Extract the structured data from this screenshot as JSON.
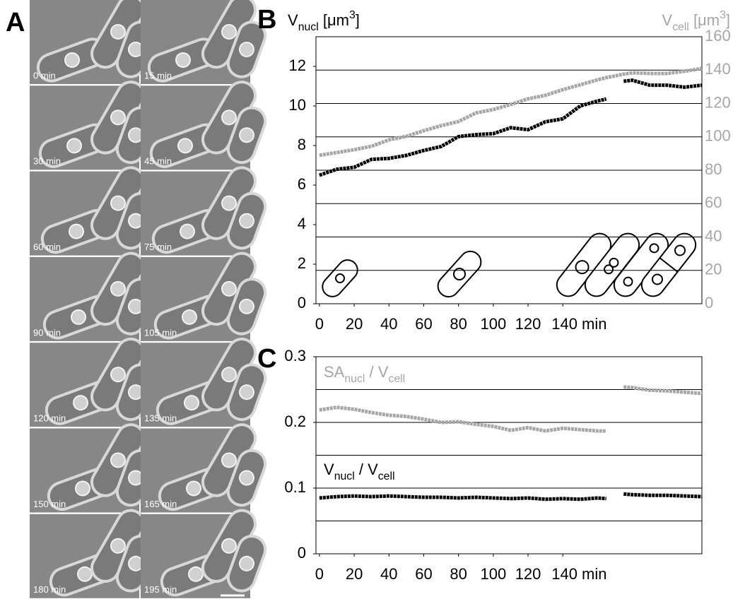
{
  "panel_a": {
    "label": "A",
    "frames": [
      "0 min",
      "15 min",
      "30 min",
      "45 min",
      "60 min",
      "75 min",
      "90 min",
      "105 min",
      "120 min",
      "135 min",
      "150 min",
      "165 min",
      "180 min",
      "195 min"
    ]
  },
  "chart_data": [
    {
      "type": "line",
      "label": "B",
      "ylabel": [
        {
          "text": "V"
        },
        {
          "text": "nucl",
          "sub": true
        },
        {
          "text": " [μm"
        },
        {
          "text": "3",
          "sup": true
        },
        {
          "text": "]"
        }
      ],
      "y2label": [
        {
          "text": "V"
        },
        {
          "text": "cell",
          "sub": true
        },
        {
          "text": " [μm"
        },
        {
          "text": "3",
          "sup": true
        },
        {
          "text": "]"
        }
      ],
      "x": [
        0,
        10,
        20,
        30,
        40,
        50,
        60,
        70,
        80,
        90,
        100,
        110,
        120,
        130,
        140,
        150,
        160,
        165,
        170,
        175,
        180,
        190,
        200,
        210,
        220
      ],
      "xlim": [
        -2,
        220
      ],
      "xticks": [
        0,
        20,
        40,
        60,
        80,
        100,
        120,
        {
          "value": 140,
          "label": "140 min"
        }
      ],
      "ylim": [
        0,
        13.5
      ],
      "yticks": [
        0,
        2,
        4,
        6,
        8,
        10,
        12
      ],
      "y2lim": [
        0,
        160
      ],
      "y2ticks": [
        0,
        20,
        40,
        60,
        80,
        100,
        120,
        140,
        160
      ],
      "y2color": "#a6a6a6",
      "grid": "y2",
      "series": [
        {
          "color": "#000000",
          "values": [
            6.5,
            6.8,
            6.9,
            7.3,
            7.35,
            7.5,
            7.75,
            7.95,
            8.45,
            8.55,
            8.6,
            8.9,
            8.8,
            9.2,
            9.35,
            10,
            10.25,
            10.35,
            null,
            11.25,
            11.3,
            11.05,
            11.05,
            10.95,
            11.05
          ]
        },
        {
          "color": "#a6a6a6",
          "axis": "y2",
          "values": [
            89,
            90.6,
            92.3,
            94.4,
            98.2,
            100.3,
            103.7,
            106.7,
            109.2,
            114.3,
            116.4,
            119.4,
            122.8,
            124.9,
            128.3,
            131.2,
            134.2,
            135.5,
            136.5,
            137.6,
            138.4,
            138,
            138,
            139.3,
            141
          ]
        }
      ]
    },
    {
      "type": "line",
      "label": "C",
      "x": [
        0,
        10,
        20,
        30,
        40,
        50,
        60,
        70,
        80,
        90,
        100,
        110,
        120,
        130,
        140,
        150,
        160,
        165,
        170,
        175,
        180,
        190,
        200,
        210,
        220
      ],
      "xlim": [
        -2,
        220
      ],
      "xticks": [
        0,
        20,
        40,
        60,
        80,
        100,
        120,
        {
          "value": 140,
          "label": "140 min"
        }
      ],
      "ylim": [
        0,
        0.3
      ],
      "yticks": [
        0,
        0.1,
        0.2,
        0.3
      ],
      "gridlines": [
        0.05,
        0.1,
        0.15,
        0.2,
        0.25
      ],
      "annotations": [
        {
          "color": "#a6a6a6",
          "parts": [
            {
              "text": "SA"
            },
            {
              "text": "nucl",
              "sub": true
            },
            {
              "text": " / V"
            },
            {
              "text": "cell",
              "sub": true
            }
          ]
        },
        {
          "color": "#000000",
          "parts": [
            {
              "text": "V"
            },
            {
              "text": "nucl",
              "sub": true
            },
            {
              "text": " / V"
            },
            {
              "text": "cell",
              "sub": true
            }
          ]
        }
      ],
      "series": [
        {
          "color": "#a6a6a6",
          "values": [
            0.219,
            0.223,
            0.22,
            0.215,
            0.211,
            0.209,
            0.205,
            0.2,
            0.201,
            0.197,
            0.194,
            0.188,
            0.192,
            0.187,
            0.191,
            0.189,
            0.187,
            0.187,
            null,
            0.254,
            0.253,
            0.249,
            0.248,
            0.246,
            0.244
          ]
        },
        {
          "color": "#000000",
          "values": [
            0.085,
            0.087,
            0.088,
            0.087,
            0.088,
            0.087,
            0.086,
            0.086,
            0.085,
            0.086,
            0.085,
            0.084,
            0.085,
            0.083,
            0.084,
            0.083,
            0.085,
            0.084,
            null,
            0.091,
            0.09,
            0.089,
            0.089,
            0.088,
            0.087
          ]
        }
      ]
    }
  ]
}
